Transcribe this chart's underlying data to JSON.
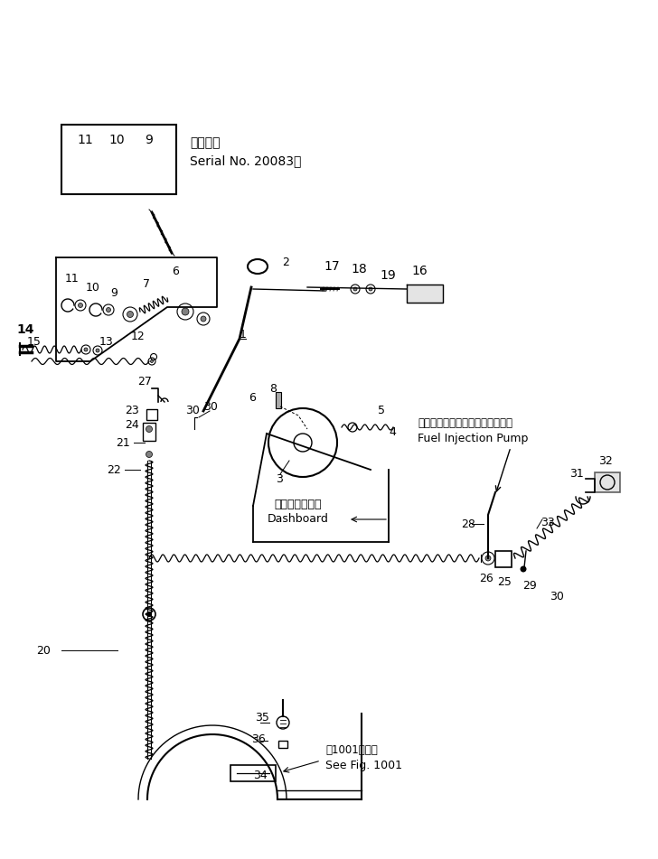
{
  "background_color": "#f5f5f0",
  "fig_width": 7.28,
  "fig_height": 9.51,
  "labels": {
    "serial_text1": "適用号機",
    "serial_text2": "Serial No. 20083～",
    "dashboard_jp": "ダッシュボード",
    "dashboard_en": "Dashboard",
    "fuel_pump_jp": "フェエルインジェクションポンプ",
    "fuel_pump_en": "Fuel Injection Pump",
    "see_fig_jp": "ㅔ1001図参照",
    "see_fig_en": "See Fig. 1001"
  }
}
